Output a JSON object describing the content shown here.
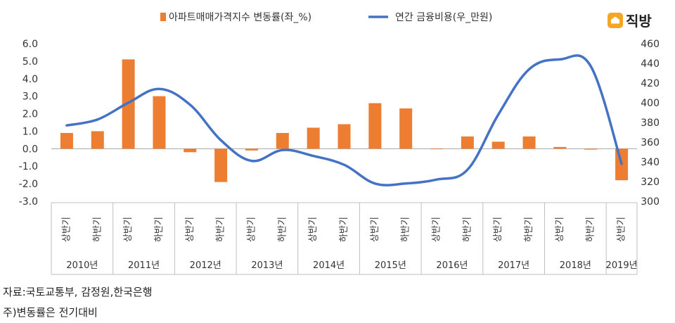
{
  "brand": {
    "name": "직방"
  },
  "legend": {
    "bar_label": "아파트매매가격지수 변동률(좌_%)",
    "line_label": "연간 금융비용(우_만원)"
  },
  "colors": {
    "bar": "#ED7D31",
    "line": "#4472C4",
    "axis": "#7f7f7f"
  },
  "notes": {
    "source": "자료:국토교통부, 감정원,한국은행",
    "change": "주)변동률은 전기대비"
  },
  "chart_data": {
    "type": "bar+line",
    "categories": [
      "상반기",
      "하반기",
      "상반기",
      "하반기",
      "상반기",
      "하반기",
      "상반기",
      "하반기",
      "상반기",
      "하반기",
      "상반기",
      "하반기",
      "상반기",
      "하반기",
      "상반기",
      "하반기",
      "상반기",
      "하반기",
      "상반기"
    ],
    "years": [
      "2010년",
      "2011년",
      "2012년",
      "2013년",
      "2014년",
      "2015년",
      "2016년",
      "2017년",
      "2018년",
      "2019년"
    ],
    "y_left": {
      "min": -3.0,
      "max": 6.0,
      "ticks": [
        "6.0",
        "5.0",
        "4.0",
        "3.0",
        "2.0",
        "1.0",
        "0.0",
        "-1.0",
        "-2.0",
        "-3.0"
      ]
    },
    "y_right": {
      "min": 300,
      "max": 460,
      "ticks": [
        "460",
        "440",
        "420",
        "400",
        "380",
        "360",
        "340",
        "320",
        "300"
      ]
    },
    "series": [
      {
        "name": "아파트매매가격지수 변동률(좌_%)",
        "type": "bar",
        "axis": "left",
        "values": [
          0.9,
          1.0,
          5.1,
          3.0,
          -0.2,
          -1.9,
          -0.1,
          0.9,
          1.2,
          1.4,
          2.6,
          2.3,
          0.0,
          0.7,
          0.4,
          0.7,
          0.1,
          -0.05,
          -1.8
        ]
      },
      {
        "name": "연간 금융비용(우_만원)",
        "type": "line",
        "axis": "right",
        "values": [
          377,
          383,
          400,
          414,
          398,
          362,
          341,
          352,
          346,
          337,
          318,
          318,
          322,
          332,
          388,
          434,
          444,
          437,
          338
        ]
      }
    ]
  }
}
